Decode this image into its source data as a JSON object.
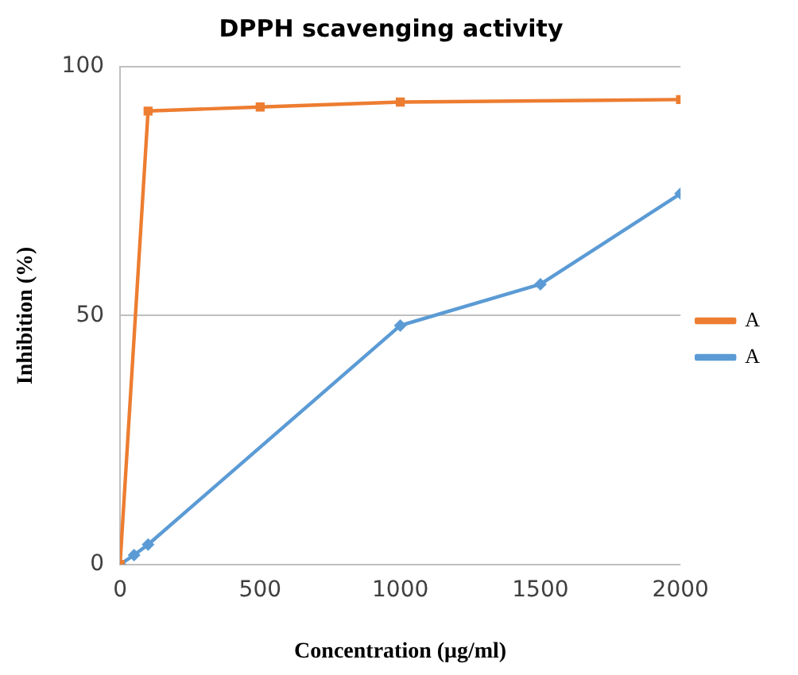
{
  "chart_data": {
    "type": "line",
    "title": "DPPH scavenging activity",
    "xlabel": "Concentration (μg/ml)",
    "ylabel": "Inhibition (%)",
    "xlim": [
      0,
      2000
    ],
    "xticks": [
      0,
      500,
      1000,
      1500,
      2000
    ],
    "ylim": [
      0,
      100
    ],
    "yticks": [
      0,
      50,
      100
    ],
    "grid": "y",
    "legend": "right",
    "line_style": "solid",
    "series": [
      {
        "name": "A",
        "color": "#ed7d31",
        "marker": "square",
        "x": [
          0,
          100,
          500,
          1000,
          2000
        ],
        "values": [
          0,
          91.1,
          91.9,
          92.9,
          93.4
        ]
      },
      {
        "name": "A",
        "color": "#5b9bd5",
        "marker": "diamond",
        "x": [
          0,
          50,
          100,
          1000,
          1500,
          2000
        ],
        "values": [
          0,
          1.9,
          4.0,
          48.0,
          56.3,
          74.5
        ]
      }
    ]
  }
}
